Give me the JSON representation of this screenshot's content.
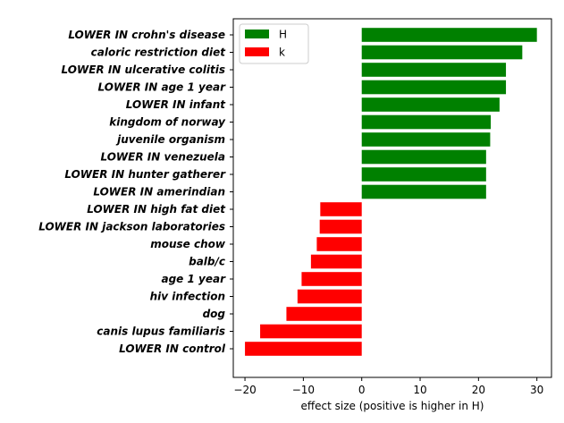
{
  "chart_data": {
    "type": "bar",
    "orientation": "horizontal",
    "title": "",
    "xlabel": "effect size (positive is higher in H)",
    "ylabel": "",
    "xlim": [
      -22,
      32.5
    ],
    "xticks": [
      -20,
      -10,
      0,
      10,
      20,
      30
    ],
    "grid": false,
    "legend_position": "top-left",
    "legend": [
      {
        "label": "H",
        "color": "#008000"
      },
      {
        "label": "k",
        "color": "#ff0000"
      }
    ],
    "categories": [
      "LOWER IN crohn's disease",
      "caloric restriction diet",
      "LOWER IN ulcerative colitis",
      "LOWER IN age 1 year",
      "LOWER IN infant",
      "kingdom of norway",
      "juvenile organism",
      "LOWER IN venezuela",
      "LOWER IN hunter gatherer",
      "LOWER IN amerindian",
      "LOWER IN high fat diet",
      "LOWER IN jackson laboratories",
      "mouse chow",
      "balb/c",
      "age 1 year",
      "hiv infection",
      "dog",
      "canis lupus familiaris",
      "LOWER IN control"
    ],
    "values": [
      30.0,
      27.5,
      24.7,
      24.7,
      23.6,
      22.1,
      22.0,
      21.3,
      21.3,
      21.3,
      -7.1,
      -7.2,
      -7.7,
      -8.7,
      -10.3,
      -11.0,
      -12.9,
      -17.4,
      -20.0
    ]
  }
}
